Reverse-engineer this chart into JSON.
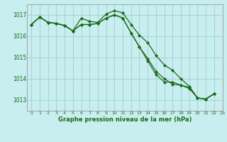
{
  "title": "Graphe pression niveau de la mer (hPa)",
  "background_color": "#c8eef0",
  "grid_color": "#aad4d8",
  "line_color": "#1a6b1a",
  "xlim": [
    -0.5,
    23
  ],
  "ylim": [
    1012.5,
    1017.5
  ],
  "yticks": [
    1013,
    1014,
    1015,
    1016,
    1017
  ],
  "xtick_labels": [
    "0",
    "1",
    "2",
    "3",
    "4",
    "5",
    "6",
    "7",
    "8",
    "9",
    "10",
    "11",
    "12",
    "13",
    "14",
    "15",
    "16",
    "17",
    "18",
    "19",
    "20",
    "21",
    "22",
    "23"
  ],
  "series": [
    [
      1016.55,
      1016.9,
      1016.65,
      1016.6,
      1016.5,
      1016.25,
      1016.85,
      1016.7,
      1016.65,
      1017.05,
      1017.2,
      1017.1,
      1016.55,
      1016.05,
      1015.7,
      1015.1,
      1014.65,
      1014.4,
      1014.0,
      1013.65,
      1013.1,
      1013.05,
      1013.3
    ],
    [
      1016.55,
      1016.9,
      1016.65,
      1016.6,
      1016.5,
      1016.25,
      1016.55,
      1016.55,
      1016.6,
      1016.85,
      1017.0,
      1016.85,
      1016.15,
      1015.5,
      1014.95,
      1014.35,
      1014.0,
      1013.75,
      1013.7,
      1013.55,
      1013.1,
      1013.05,
      1013.3
    ],
    [
      1016.55,
      1016.9,
      1016.65,
      1016.6,
      1016.5,
      1016.25,
      1016.55,
      1016.55,
      1016.6,
      1016.85,
      1017.0,
      1016.85,
      1016.15,
      1015.5,
      1014.85,
      1014.2,
      1013.85,
      1013.85,
      1013.7,
      1013.6,
      1013.1,
      1013.05,
      1013.3
    ]
  ]
}
